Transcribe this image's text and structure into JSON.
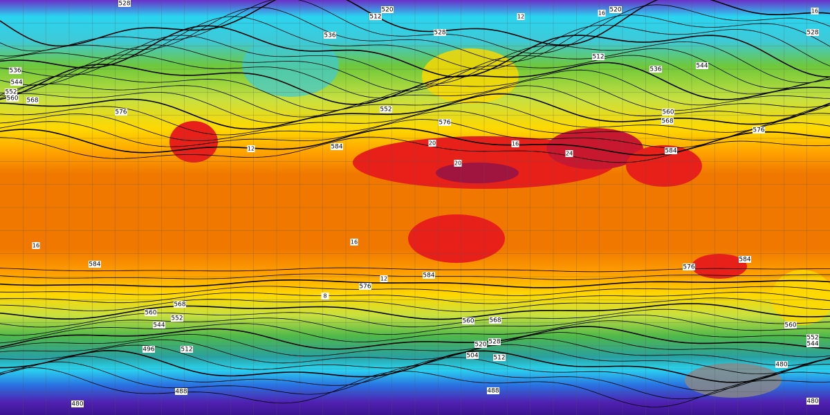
{
  "geopotential_labels": [
    "528",
    "520",
    "512",
    "536",
    "528",
    "520",
    "528",
    "512",
    "544",
    "536",
    "536",
    "544",
    "552",
    "560",
    "568",
    "576",
    "584",
    "576",
    "552",
    "560",
    "568",
    "576",
    "584",
    "584",
    "584",
    "576",
    "584",
    "576",
    "568",
    "560",
    "552",
    "544",
    "560",
    "568",
    "528",
    "520",
    "512",
    "504",
    "496",
    "512",
    "488",
    "488",
    "480",
    "480",
    "480",
    "560",
    "552",
    "544"
  ],
  "temperature_labels": [
    "16",
    "16",
    "12",
    "12",
    "20",
    "16",
    "24",
    "20",
    "8",
    "16",
    "12",
    "16"
  ]
}
